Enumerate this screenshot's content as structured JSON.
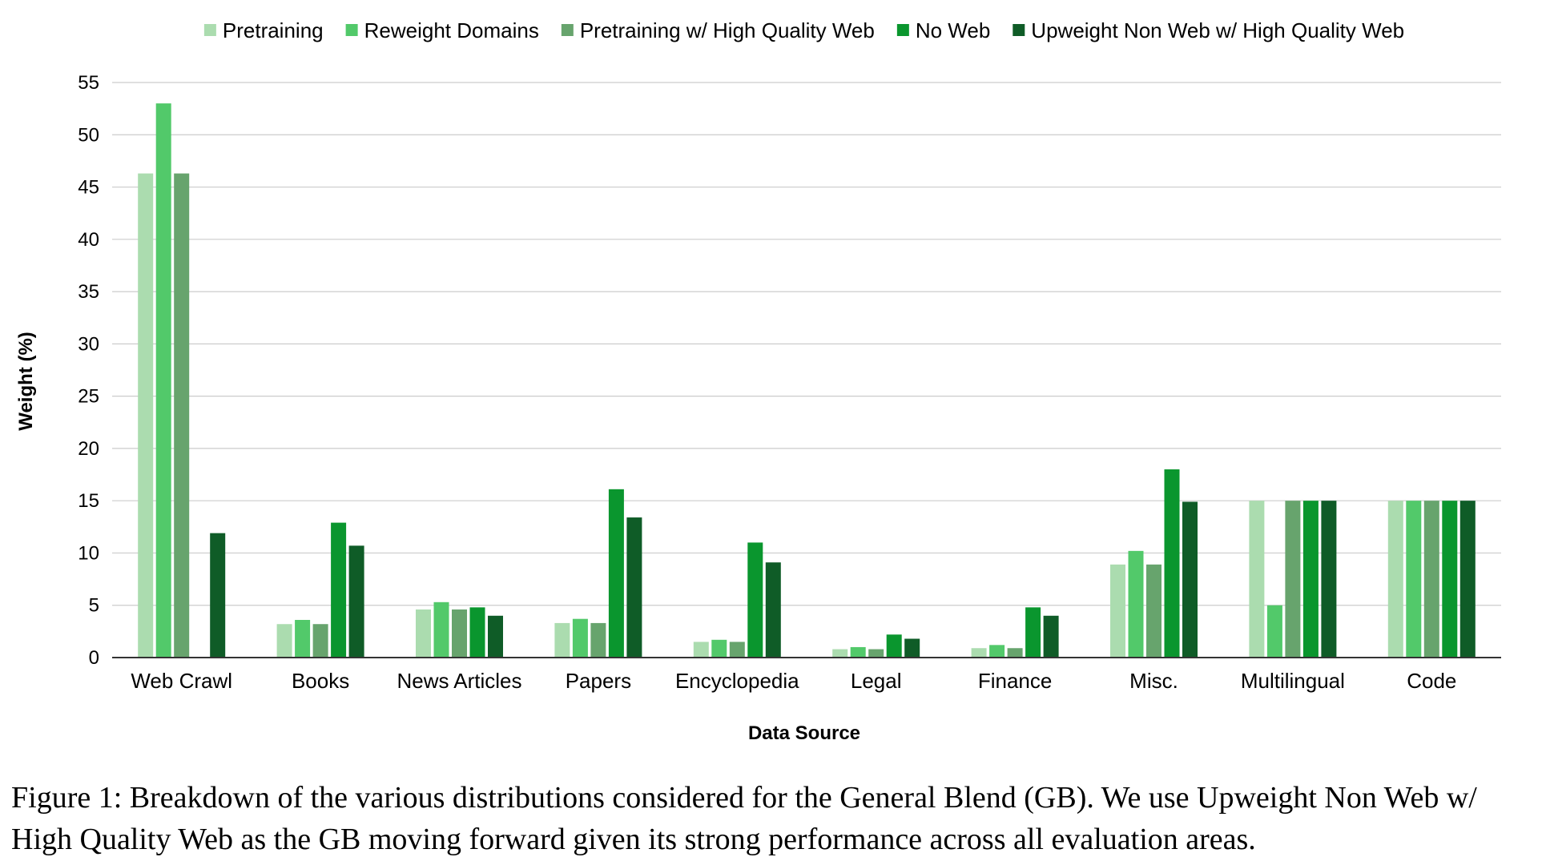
{
  "chart_data": {
    "type": "bar",
    "xlabel": "Data Source",
    "ylabel": "Weight (%)",
    "ylim": [
      0,
      55
    ],
    "yticks": [
      0,
      5,
      10,
      15,
      20,
      25,
      30,
      35,
      40,
      45,
      50,
      55
    ],
    "grid": true,
    "legend_position": "top",
    "categories": [
      "Web Crawl",
      "Books",
      "News Articles",
      "Papers",
      "Encyclopedia",
      "Legal",
      "Finance",
      "Misc.",
      "Multilingual",
      "Code"
    ],
    "series": [
      {
        "name": "Pretraining",
        "color": "#abdcaf",
        "values": [
          46.3,
          3.2,
          4.6,
          3.3,
          1.5,
          0.8,
          0.9,
          8.9,
          15.0,
          15.0
        ]
      },
      {
        "name": "Reweight Domains",
        "color": "#52c96a",
        "values": [
          53.0,
          3.6,
          5.3,
          3.7,
          1.7,
          1.0,
          1.2,
          10.2,
          5.0,
          15.0
        ]
      },
      {
        "name": "Pretraining w/ High Quality Web",
        "color": "#67a46d",
        "values": [
          46.3,
          3.2,
          4.6,
          3.3,
          1.5,
          0.8,
          0.9,
          8.9,
          15.0,
          15.0
        ]
      },
      {
        "name": "No Web",
        "color": "#0a962e",
        "values": [
          0,
          12.9,
          4.8,
          16.1,
          11.0,
          2.2,
          4.8,
          18.0,
          15.0,
          15.0
        ]
      },
      {
        "name": "Upweight Non Web w/ High Quality Web",
        "color": "#0f5c27",
        "values": [
          11.9,
          10.7,
          4.0,
          13.4,
          9.1,
          1.8,
          4.0,
          14.9,
          15.0,
          15.0
        ]
      }
    ]
  },
  "caption": "Figure 1: Breakdown of the various distributions considered for the General Blend (GB). We use Upweight Non Web w/ High Quality Web as the GB moving forward given its strong performance across all evaluation areas."
}
